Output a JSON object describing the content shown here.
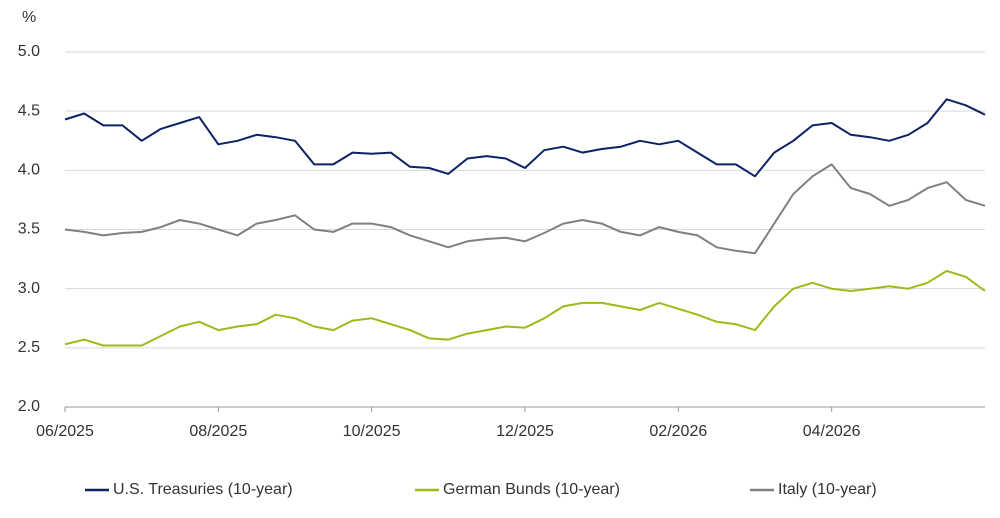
{
  "chart_data": {
    "type": "line",
    "y_label": "%",
    "categories": [
      "06/2025",
      null,
      null,
      null,
      null,
      null,
      null,
      null,
      "08/2025",
      null,
      null,
      null,
      null,
      null,
      null,
      null,
      "10/2025",
      null,
      null,
      null,
      null,
      null,
      null,
      null,
      "12/2025",
      null,
      null,
      null,
      null,
      null,
      null,
      null,
      "02/2026",
      null,
      null,
      null,
      null,
      null,
      null,
      null,
      "04/2026",
      null,
      null,
      null,
      null,
      null,
      null,
      null,
      null
    ],
    "series": [
      {
        "name": "U.S. Treasuries (10-year)",
        "color": "#0b2265",
        "values": [
          4.43,
          4.48,
          4.38,
          4.38,
          4.25,
          4.35,
          4.4,
          4.45,
          4.22,
          4.25,
          4.3,
          4.28,
          4.25,
          4.05,
          4.05,
          4.15,
          4.14,
          4.15,
          4.03,
          4.02,
          3.97,
          4.1,
          4.12,
          4.1,
          4.02,
          4.17,
          4.2,
          4.15,
          4.18,
          4.2,
          4.25,
          4.22,
          4.25,
          4.15,
          4.05,
          4.05,
          3.95,
          4.15,
          4.25,
          4.38,
          4.4,
          4.3,
          4.28,
          4.25,
          4.3,
          4.4,
          4.6,
          4.55,
          4.47
        ]
      },
      {
        "name": "German Bunds (10-year)",
        "color": "#9bbb19",
        "values": [
          2.53,
          2.57,
          2.52,
          2.52,
          2.52,
          2.6,
          2.68,
          2.72,
          2.65,
          2.68,
          2.7,
          2.78,
          2.75,
          2.68,
          2.65,
          2.73,
          2.75,
          2.7,
          2.65,
          2.58,
          2.57,
          2.62,
          2.65,
          2.68,
          2.67,
          2.75,
          2.85,
          2.88,
          2.88,
          2.85,
          2.82,
          2.88,
          2.83,
          2.78,
          2.72,
          2.7,
          2.65,
          2.85,
          3.0,
          3.05,
          3.0,
          2.98,
          3.0,
          3.02,
          3.0,
          3.05,
          3.15,
          3.1,
          2.98
        ]
      },
      {
        "name": "Italy (10-year)",
        "color": "#808080",
        "values": [
          3.5,
          3.48,
          3.45,
          3.47,
          3.48,
          3.52,
          3.58,
          3.55,
          3.5,
          3.45,
          3.55,
          3.58,
          3.62,
          3.5,
          3.48,
          3.55,
          3.55,
          3.52,
          3.45,
          3.4,
          3.35,
          3.4,
          3.42,
          3.43,
          3.4,
          3.47,
          3.55,
          3.58,
          3.55,
          3.48,
          3.45,
          3.52,
          3.48,
          3.45,
          3.35,
          3.32,
          3.3,
          3.55,
          3.8,
          3.95,
          4.05,
          3.85,
          3.8,
          3.7,
          3.75,
          3.85,
          3.9,
          3.75,
          3.7
        ]
      }
    ],
    "ylim": [
      2,
      5
    ],
    "yticks": [
      {
        "value": 2,
        "label": "2.0"
      },
      2.5,
      {
        "value": 3,
        "label": "3.0"
      },
      3.5,
      {
        "value": 4,
        "label": "4.0"
      },
      4.5,
      {
        "value": 5,
        "label": "5.0"
      }
    ],
    "grid": true,
    "legend": "bottom"
  }
}
